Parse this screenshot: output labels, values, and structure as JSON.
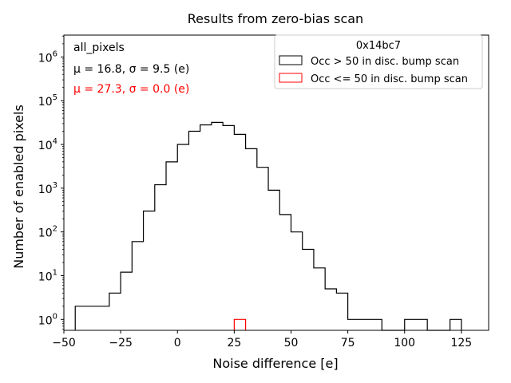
{
  "chart_data": {
    "type": "histogram-step",
    "title": "Results from zero-bias scan",
    "xlabel": "Noise difference [e]",
    "ylabel": "Number of enabled pixels",
    "xlim": [
      -50,
      137
    ],
    "ylog": true,
    "ylim_log10": [
      -0.25,
      6.5
    ],
    "x_ticks": [
      -50,
      -25,
      0,
      25,
      50,
      75,
      100,
      125
    ],
    "x_tick_labels": [
      "−50",
      "−25",
      "0",
      "25",
      "50",
      "75",
      "100",
      "125"
    ],
    "y_ticks": [
      0,
      1,
      2,
      3,
      4,
      5,
      6
    ],
    "y_tick_base": "10",
    "bin_width": 5,
    "series": [
      {
        "name": "Occ > 50 in disc. bump scan",
        "color": "#000000",
        "bins": [
          {
            "x0": -45,
            "x1": -30,
            "count": 2
          },
          {
            "x0": -30,
            "x1": -25,
            "count": 4
          },
          {
            "x0": -25,
            "x1": -20,
            "count": 12
          },
          {
            "x0": -20,
            "x1": -15,
            "count": 60
          },
          {
            "x0": -15,
            "x1": -10,
            "count": 300
          },
          {
            "x0": -10,
            "x1": -5,
            "count": 1200
          },
          {
            "x0": -5,
            "x1": 0,
            "count": 4000
          },
          {
            "x0": 0,
            "x1": 5,
            "count": 10000
          },
          {
            "x0": 5,
            "x1": 10,
            "count": 20000
          },
          {
            "x0": 10,
            "x1": 15,
            "count": 28000
          },
          {
            "x0": 15,
            "x1": 20,
            "count": 32000
          },
          {
            "x0": 20,
            "x1": 25,
            "count": 27000
          },
          {
            "x0": 25,
            "x1": 30,
            "count": 17000
          },
          {
            "x0": 30,
            "x1": 35,
            "count": 8000
          },
          {
            "x0": 35,
            "x1": 40,
            "count": 3000
          },
          {
            "x0": 40,
            "x1": 45,
            "count": 900
          },
          {
            "x0": 45,
            "x1": 50,
            "count": 250
          },
          {
            "x0": 50,
            "x1": 55,
            "count": 100
          },
          {
            "x0": 55,
            "x1": 60,
            "count": 40
          },
          {
            "x0": 60,
            "x1": 65,
            "count": 15
          },
          {
            "x0": 65,
            "x1": 70,
            "count": 5
          },
          {
            "x0": 70,
            "x1": 75,
            "count": 4
          },
          {
            "x0": 75,
            "x1": 90,
            "count": 1
          },
          {
            "x0": 90,
            "x1": 100,
            "count": 0
          },
          {
            "x0": 100,
            "x1": 110,
            "count": 1
          },
          {
            "x0": 110,
            "x1": 120,
            "count": 0
          },
          {
            "x0": 120,
            "x1": 125,
            "count": 1
          }
        ]
      },
      {
        "name": "Occ <= 50 in disc. bump scan",
        "color": "#ff0000",
        "bins": [
          {
            "x0": 25,
            "x1": 30,
            "count": 1
          }
        ]
      }
    ],
    "annotations": [
      {
        "text": "all_pixels",
        "color": "#000000"
      },
      {
        "text": "μ = 16.8, σ = 9.5 (e)",
        "color": "#000000"
      },
      {
        "text": "μ = 27.3, σ = 0.0 (e)",
        "color": "#ff0000"
      }
    ],
    "legend": {
      "title": "0x14bc7",
      "position": "top-right",
      "entries": [
        "Occ > 50 in disc. bump scan",
        "Occ <= 50 in disc. bump scan"
      ]
    }
  }
}
